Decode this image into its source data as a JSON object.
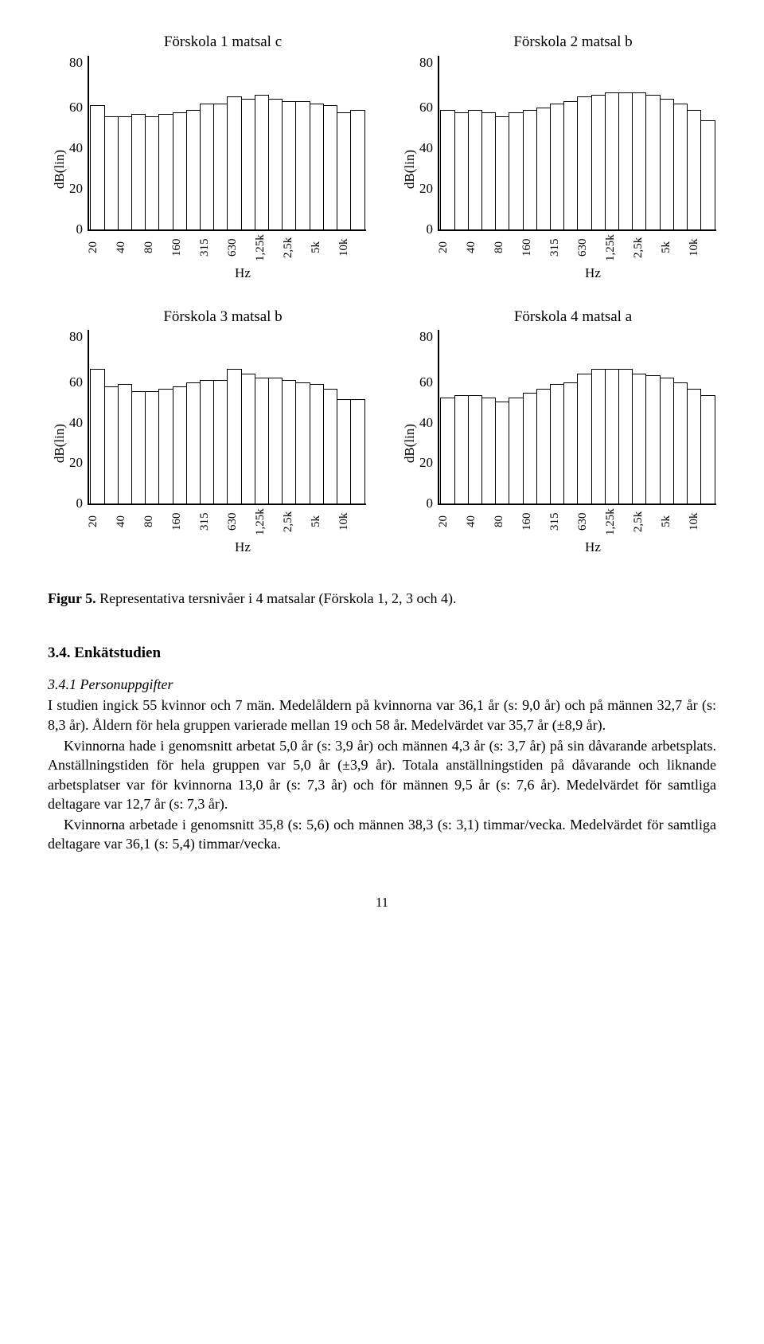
{
  "charts": [
    {
      "title": "Förskola 1 matsal c",
      "ylabel": "dB(lin)",
      "xlabel": "Hz",
      "ylim": [
        0,
        80
      ],
      "yticks": [
        80,
        60,
        40,
        20,
        0
      ],
      "xticks": [
        "20",
        "40",
        "80",
        "160",
        "315",
        "630",
        "1,25k",
        "2,5k",
        "5k",
        "10k"
      ],
      "values": [
        57,
        52,
        52,
        53,
        52,
        53,
        54,
        55,
        58,
        58,
        61,
        60,
        62,
        60,
        59,
        59,
        58,
        57,
        54,
        55
      ],
      "bar_fill": "#ffffff",
      "bar_stroke": "#000000",
      "axis_color": "#000000"
    },
    {
      "title": "Förskola 2 matsal b",
      "ylabel": "dB(lin)",
      "xlabel": "Hz",
      "ylim": [
        0,
        80
      ],
      "yticks": [
        80,
        60,
        40,
        20,
        0
      ],
      "xticks": [
        "20",
        "40",
        "80",
        "160",
        "315",
        "630",
        "1,25k",
        "2,5k",
        "5k",
        "10k"
      ],
      "values": [
        55,
        54,
        55,
        54,
        52,
        54,
        55,
        56,
        58,
        59,
        61,
        62,
        63,
        63,
        63,
        62,
        60,
        58,
        55,
        50
      ],
      "bar_fill": "#ffffff",
      "bar_stroke": "#000000",
      "axis_color": "#000000"
    },
    {
      "title": "Förskola 3 matsal b",
      "ylabel": "dB(lin)",
      "xlabel": "Hz",
      "ylim": [
        0,
        80
      ],
      "yticks": [
        80,
        60,
        40,
        20,
        0
      ],
      "xticks": [
        "20",
        "40",
        "80",
        "160",
        "315",
        "630",
        "1,25k",
        "2,5k",
        "5k",
        "10k"
      ],
      "values": [
        62,
        54,
        55,
        52,
        52,
        53,
        54,
        56,
        57,
        57,
        62,
        60,
        58,
        58,
        57,
        56,
        55,
        53,
        48,
        48
      ],
      "bar_fill": "#ffffff",
      "bar_stroke": "#000000",
      "axis_color": "#000000"
    },
    {
      "title": "Förskola 4 matsal a",
      "ylabel": "dB(lin)",
      "xlabel": "Hz",
      "ylim": [
        0,
        80
      ],
      "yticks": [
        80,
        60,
        40,
        20,
        0
      ],
      "xticks": [
        "20",
        "40",
        "80",
        "160",
        "315",
        "630",
        "1,25k",
        "2,5k",
        "5k",
        "10k"
      ],
      "values": [
        49,
        50,
        50,
        49,
        47,
        49,
        51,
        53,
        55,
        56,
        60,
        62,
        62,
        62,
        60,
        59,
        58,
        56,
        53,
        50
      ],
      "bar_fill": "#ffffff",
      "bar_stroke": "#000000",
      "axis_color": "#000000"
    }
  ],
  "figure_caption_label": "Figur 5.",
  "figure_caption_text": " Representativa tersnivåer i 4 matsalar (Förskola 1, 2, 3 och 4).",
  "section_heading": "3.4. Enkätstudien",
  "subsection_heading": "3.4.1 Personuppgifter",
  "paragraphs": [
    "I studien ingick 55 kvinnor och 7 män. Medelåldern på kvinnorna var 36,1 år (s: 9,0 år) och på männen 32,7 år (s: 8,3 år). Åldern för hela gruppen varierade mellan 19 och 58 år. Medelvärdet var 35,7 år (±8,9 år).",
    "Kvinnorna hade i genomsnitt arbetat 5,0 år (s: 3,9 år) och männen 4,3 år (s: 3,7 år) på sin dåvarande arbetsplats. Anställningstiden för hela gruppen var 5,0 år (±3,9 år). Totala anställningstiden på dåvarande och liknande arbetsplatser var för kvinnorna 13,0 år (s: 7,3 år) och för männen 9,5 år (s: 7,6 år). Medelvärdet för samtliga deltagare var 12,7 år (s: 7,3 år).",
    "Kvinnorna arbetade i genomsnitt 35,8 (s: 5,6) och männen 38,3 (s: 3,1) timmar/vecka. Medelvärdet för samtliga deltagare var 36,1 (s: 5,4) timmar/vecka."
  ],
  "page_number": "11"
}
